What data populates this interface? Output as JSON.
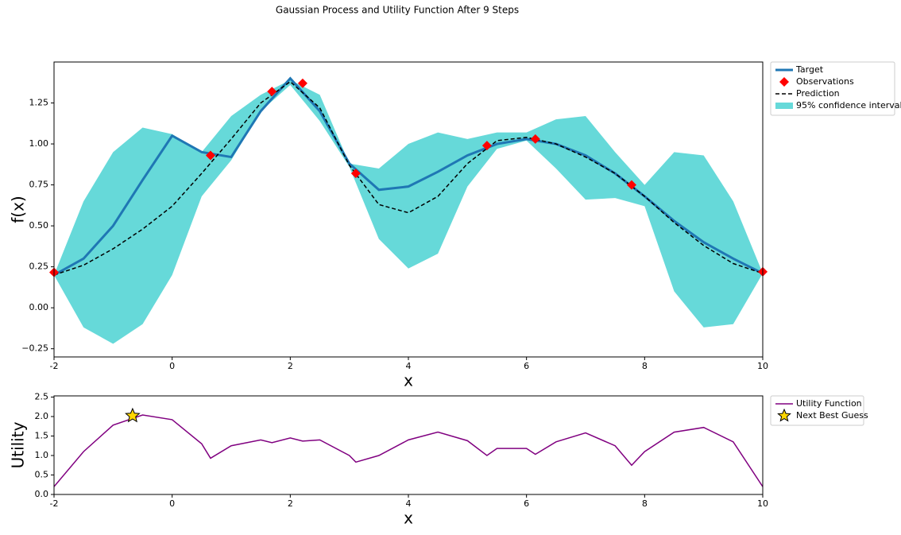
{
  "title": "Gaussian Process and Utility Function After 9 Steps",
  "chart_data": [
    {
      "type": "line",
      "xlabel": "x",
      "ylabel": "f(x)",
      "xlim": [
        -2,
        10
      ],
      "xticks": [
        -2,
        0,
        2,
        4,
        6,
        8,
        10
      ],
      "ylim": [
        -0.3,
        1.5
      ],
      "yticks": [
        {
          "value": -0.25,
          "label": "−0.25"
        },
        {
          "value": 0,
          "label": "0.00"
        },
        {
          "value": 0.25,
          "label": "0.25"
        },
        {
          "value": 0.5,
          "label": "0.50"
        },
        {
          "value": 0.75,
          "label": "0.75"
        },
        {
          "value": 1,
          "label": "1.00"
        },
        {
          "value": 1.25,
          "label": "1.25"
        }
      ],
      "legend": "outside upper right",
      "x": [
        -2,
        -1.5,
        -1,
        -0.5,
        0,
        0.5,
        1,
        1.5,
        2,
        2.5,
        3,
        3.5,
        4,
        4.5,
        5,
        5.5,
        6,
        6.5,
        7,
        7.5,
        8,
        8.5,
        9,
        9.5,
        10
      ],
      "series": [
        {
          "name": "Target",
          "style": "line",
          "color": "#1f77b4",
          "values": [
            0.2,
            0.3,
            0.5,
            0.78,
            1.05,
            0.95,
            0.92,
            1.2,
            1.4,
            1.2,
            0.88,
            0.72,
            0.74,
            0.83,
            0.93,
            1.0,
            1.03,
            1.0,
            0.93,
            0.82,
            0.68,
            0.53,
            0.4,
            0.3,
            0.21
          ]
        },
        {
          "name": "Observations",
          "style": "markers",
          "color": "#ff0000",
          "x": [
            -2,
            0.65,
            1.69,
            2.21,
            3.11,
            5.33,
            6.15,
            7.78,
            10
          ],
          "values": [
            0.216,
            0.93,
            1.32,
            1.37,
            0.82,
            0.99,
            1.03,
            0.75,
            0.22
          ]
        },
        {
          "name": "Prediction",
          "style": "dashed",
          "color": "#000000",
          "values": [
            0.2,
            0.26,
            0.36,
            0.48,
            0.62,
            0.82,
            1.03,
            1.25,
            1.38,
            1.22,
            0.87,
            0.63,
            0.58,
            0.68,
            0.88,
            1.02,
            1.04,
            1.0,
            0.92,
            0.82,
            0.68,
            0.52,
            0.38,
            0.27,
            0.21
          ]
        },
        {
          "name": "95% confidence interval",
          "style": "band",
          "color": "#66d9d9",
          "upper": [
            0.2,
            0.65,
            0.95,
            1.1,
            1.06,
            0.95,
            1.17,
            1.3,
            1.39,
            1.3,
            0.88,
            0.85,
            1.0,
            1.07,
            1.03,
            1.07,
            1.07,
            1.15,
            1.17,
            0.95,
            0.75,
            0.95,
            0.93,
            0.65,
            0.21
          ],
          "lower": [
            0.2,
            -0.12,
            -0.22,
            -0.1,
            0.2,
            0.68,
            0.9,
            1.2,
            1.36,
            1.14,
            0.86,
            0.42,
            0.24,
            0.33,
            0.74,
            0.97,
            1.02,
            0.85,
            0.66,
            0.67,
            0.62,
            0.1,
            -0.12,
            -0.1,
            0.21
          ]
        }
      ]
    },
    {
      "type": "line",
      "xlabel": "x",
      "ylabel": "Utility",
      "xlim": [
        -2,
        10
      ],
      "xticks": [
        -2,
        0,
        2,
        4,
        6,
        8,
        10
      ],
      "ylim": [
        0,
        2.53
      ],
      "yticks": [
        {
          "value": 0,
          "label": "0.0"
        },
        0.5,
        {
          "value": 1,
          "label": "1.0"
        },
        1.5,
        {
          "value": 2,
          "label": "2.0"
        },
        2.5
      ],
      "legend": "outside upper right",
      "x": [
        -2,
        -1.5,
        -1,
        -0.5,
        0,
        0.5,
        0.65,
        1,
        1.5,
        1.69,
        2,
        2.21,
        2.5,
        3,
        3.11,
        3.5,
        4,
        4.5,
        5,
        5.33,
        5.5,
        6,
        6.15,
        6.5,
        7,
        7.5,
        7.78,
        8,
        8.5,
        9,
        9.5,
        10
      ],
      "series": [
        {
          "name": "Utility Function",
          "style": "line",
          "color": "#800080",
          "values": [
            0.2,
            1.1,
            1.78,
            2.04,
            1.92,
            1.3,
            0.93,
            1.25,
            1.4,
            1.33,
            1.45,
            1.37,
            1.4,
            1.0,
            0.83,
            1.0,
            1.4,
            1.6,
            1.38,
            1.0,
            1.18,
            1.18,
            1.03,
            1.35,
            1.58,
            1.25,
            0.75,
            1.1,
            1.6,
            1.72,
            1.35,
            0.2
          ]
        },
        {
          "name": "Next Best Guess",
          "style": "star",
          "color": "#ffd700",
          "x": [
            -0.67
          ],
          "values": [
            2.02
          ]
        }
      ]
    }
  ]
}
